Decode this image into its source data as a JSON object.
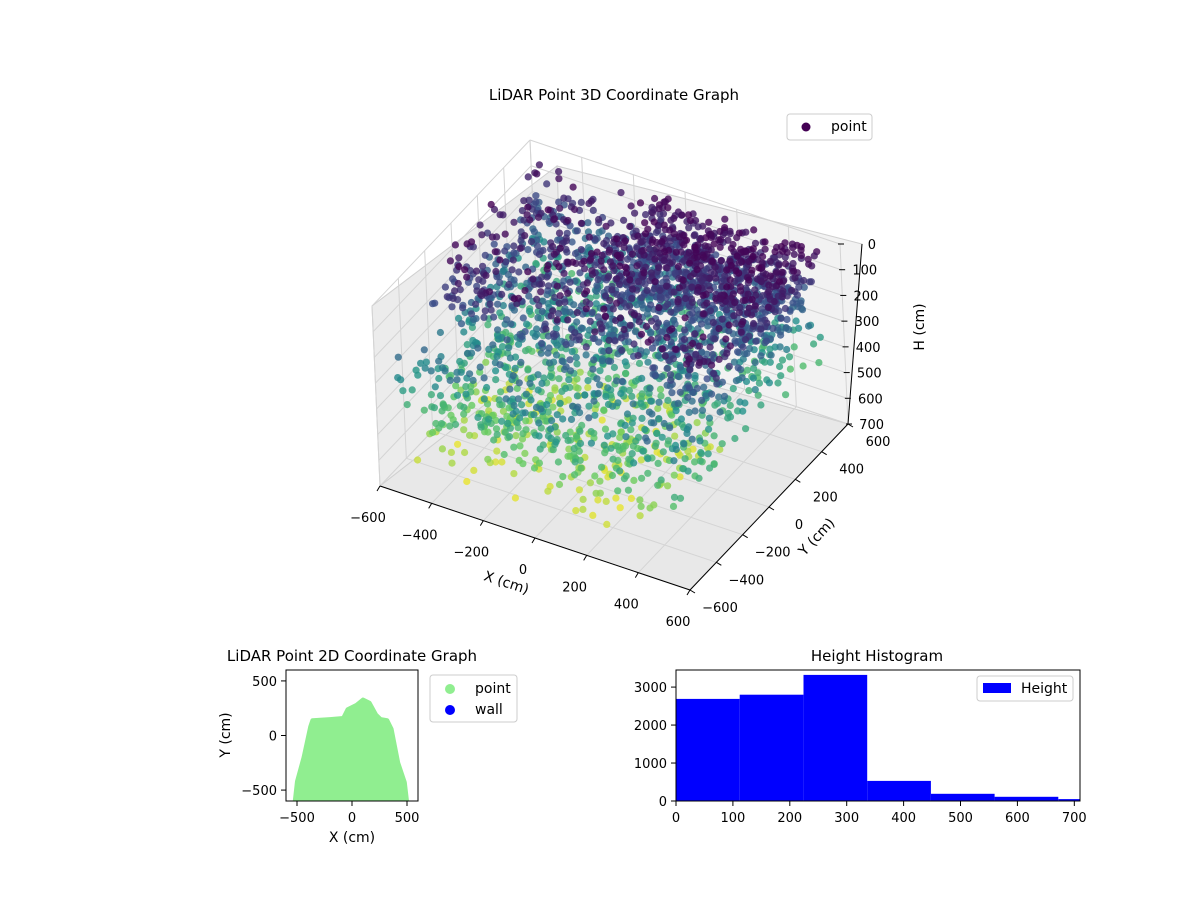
{
  "colors": {
    "viridis_dark": "#440154",
    "viridis_mid": "#3b528b",
    "viridis_teal": "#21918c",
    "viridis_green": "#5ec962",
    "viridis_yellow": "#fde725",
    "point2d": "#90ee90",
    "wall": "#0000ff",
    "hist": "#0000ff",
    "pane": "#f2f2f2",
    "grid": "#d9d9d9"
  },
  "chart_data": [
    {
      "type": "scatter",
      "title": "LiDAR Point 3D Coordinate Graph",
      "xlabel": "X (cm)",
      "ylabel": "Y (cm)",
      "zlabel": "H (cm)",
      "xlim": [
        -600,
        600
      ],
      "ylim": [
        -600,
        600
      ],
      "zlim": [
        0,
        700
      ],
      "z_inverted": true,
      "xticks": [
        "−600",
        "−400",
        "−200",
        "0",
        "200",
        "400",
        "600"
      ],
      "yticks": [
        "−600",
        "−400",
        "−200",
        "0",
        "200",
        "400",
        "600"
      ],
      "zticks": [
        "0",
        "100",
        "200",
        "300",
        "400",
        "500",
        "600",
        "700"
      ],
      "grid": true,
      "legend": {
        "entries": [
          "point"
        ],
        "placement": "top-right"
      },
      "series": [
        {
          "name": "point",
          "colormap": "viridis",
          "color_by": "height",
          "clusters": [
            {
              "x": [
                -550,
                550
              ],
              "y": [
                -300,
                550
              ],
              "h": [
                0,
                220
              ]
            },
            {
              "x": [
                -550,
                550
              ],
              "y": [
                -550,
                550
              ],
              "h": [
                200,
                450
              ]
            },
            {
              "x": [
                -500,
                400
              ],
              "y": [
                -550,
                200
              ],
              "h": [
                420,
                620
              ]
            }
          ]
        }
      ]
    },
    {
      "type": "scatter",
      "title": "LiDAR Point 2D Coordinate Graph",
      "xlabel": "X (cm)",
      "ylabel": "Y (cm)",
      "xlim": [
        -600,
        600
      ],
      "ylim": [
        -600,
        600
      ],
      "xticks": [
        "−500",
        "0",
        "500"
      ],
      "yticks": [
        "−500",
        "0",
        "500"
      ],
      "legend": {
        "entries": [
          "point",
          "wall"
        ],
        "placement": "outside-right"
      },
      "series": [
        {
          "name": "point",
          "color": "#90ee90",
          "outline": [
            [
              -520,
              -600
            ],
            [
              -500,
              -420
            ],
            [
              -440,
              -200
            ],
            [
              -380,
              80
            ],
            [
              -360,
              140
            ],
            [
              -200,
              150
            ],
            [
              -80,
              160
            ],
            [
              -40,
              240
            ],
            [
              40,
              280
            ],
            [
              100,
              330
            ],
            [
              160,
              300
            ],
            [
              220,
              190
            ],
            [
              260,
              150
            ],
            [
              320,
              140
            ],
            [
              360,
              60
            ],
            [
              420,
              -250
            ],
            [
              480,
              -430
            ],
            [
              500,
              -600
            ]
          ]
        },
        {
          "name": "wall",
          "color": "#0000ff",
          "points": []
        }
      ]
    },
    {
      "type": "bar",
      "title": "Height Histogram",
      "xlabel": "",
      "ylabel": "",
      "bin_edges": [
        0,
        112,
        224,
        336,
        448,
        560,
        672,
        710
      ],
      "values": [
        2690,
        2800,
        3320,
        530,
        190,
        110,
        50
      ],
      "xlim": [
        0,
        710
      ],
      "ylim": [
        0,
        3450
      ],
      "xticks": [
        "0",
        "100",
        "200",
        "300",
        "400",
        "500",
        "600",
        "700"
      ],
      "yticks": [
        "0",
        "1000",
        "2000",
        "3000"
      ],
      "legend": {
        "entries": [
          "Height"
        ],
        "placement": "top-right"
      },
      "series": [
        {
          "name": "Height",
          "color": "#0000ff"
        }
      ]
    }
  ]
}
